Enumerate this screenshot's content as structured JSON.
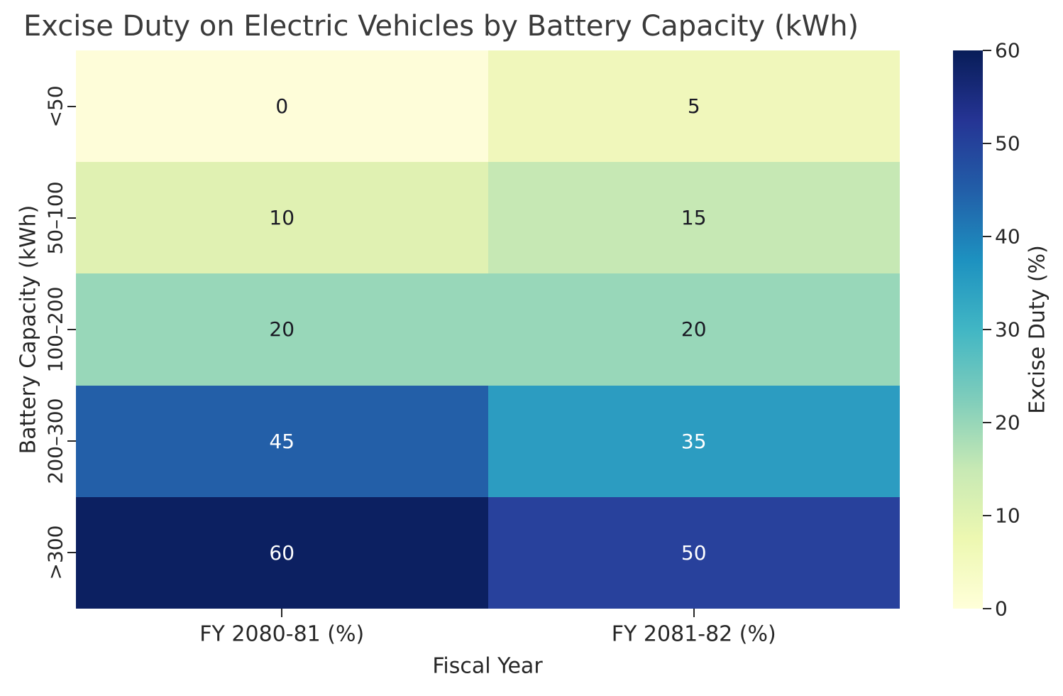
{
  "title": "Excise Duty on Electric Vehicles by Battery Capacity (kWh)",
  "chart_data": {
    "type": "heatmap",
    "title": "Excise Duty on Electric Vehicles by Battery Capacity (kWh)",
    "xlabel": "Fiscal Year",
    "ylabel": "Battery Capacity (kWh)",
    "columns": [
      "FY 2080-81 (%)",
      "FY 2081-82 (%)"
    ],
    "rows": [
      "<50",
      "50–100",
      "100–200",
      "200–300",
      ">300"
    ],
    "values": [
      [
        0,
        5
      ],
      [
        10,
        15
      ],
      [
        20,
        20
      ],
      [
        45,
        35
      ],
      [
        60,
        50
      ]
    ],
    "annotations": [
      [
        "0",
        "5"
      ],
      [
        "10",
        "15"
      ],
      [
        "20",
        "20"
      ],
      [
        "45",
        "35"
      ],
      [
        "60",
        "50"
      ]
    ],
    "cell_colors": [
      [
        "#fefdd9",
        "#f0f7bb"
      ],
      [
        "#e0f1b2",
        "#c6e8b4"
      ],
      [
        "#98d7b9",
        "#98d7b9"
      ],
      [
        "#235fa8",
        "#2c9cc1"
      ],
      [
        "#0c2061",
        "#28419c"
      ]
    ],
    "cell_text_tone": [
      [
        "dark",
        "dark"
      ],
      [
        "dark",
        "dark"
      ],
      [
        "dark",
        "dark"
      ],
      [
        "light",
        "light"
      ],
      [
        "light",
        "light"
      ]
    ],
    "colorbar": {
      "label": "Excise Duty (%)",
      "min": 0,
      "max": 60,
      "ticks": [
        "0",
        "10",
        "20",
        "30",
        "40",
        "50",
        "60"
      ],
      "tick_values": [
        0,
        10,
        20,
        30,
        40,
        50,
        60
      ],
      "colormap": "YlGnBu",
      "gradient_stops": [
        "#ffffd9",
        "#edf8b1",
        "#c7e9b4",
        "#7fcdbb",
        "#41b6c4",
        "#1d91c0",
        "#225ea8",
        "#253494",
        "#081d58"
      ]
    },
    "legend": "none",
    "grid": "off"
  },
  "colors": {
    "dark_text": "#1a1a24",
    "light_text": "#ffffff",
    "axis_text": "#262626",
    "title_text": "#3a3a3a"
  }
}
